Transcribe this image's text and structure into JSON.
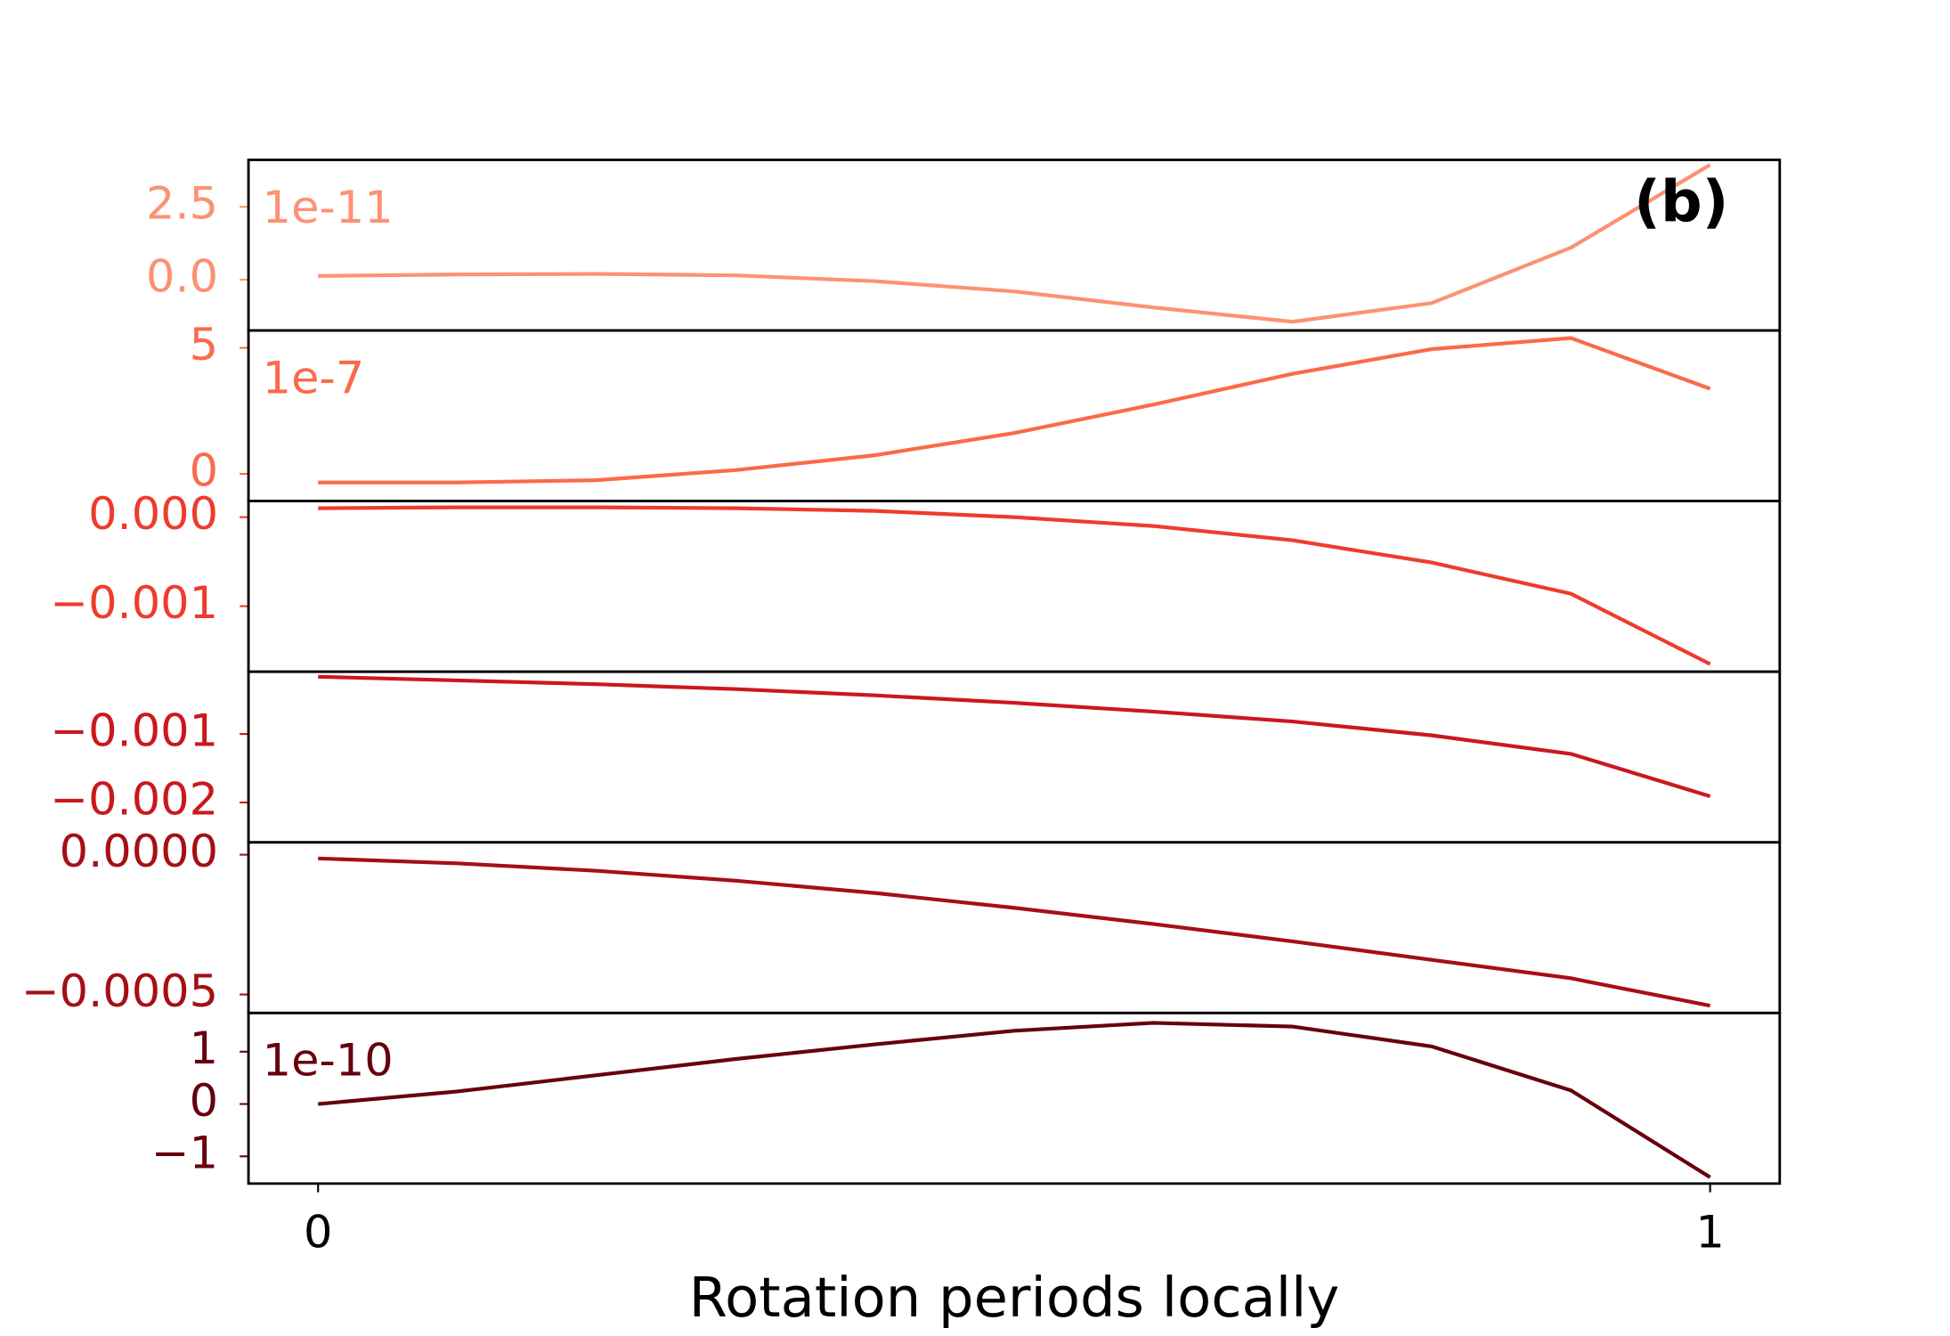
{
  "chart_data": [
    {
      "type": "line",
      "color": "#fc9272",
      "offset_text": "1e-11",
      "annotation": "(b)",
      "x": [
        0,
        0.1,
        0.2,
        0.3,
        0.4,
        0.5,
        0.6,
        0.7,
        0.8,
        0.9,
        1
      ],
      "values": [
        0.13,
        0.18,
        0.2,
        0.15,
        -0.05,
        -0.4,
        -0.95,
        -1.44,
        -0.8,
        1.1,
        3.94
      ],
      "xlim": [
        -0.05,
        1.05
      ],
      "ylim": [
        -1.74,
        4.11
      ],
      "yticks": [
        {
          "value": 0,
          "label": "0.0"
        },
        2.5
      ]
    },
    {
      "type": "line",
      "color": "#fb6a4a",
      "offset_text": "1e-7",
      "x": [
        0,
        0.1,
        0.2,
        0.3,
        0.4,
        0.5,
        0.6,
        0.7,
        0.8,
        0.9,
        1
      ],
      "values": [
        -0.34,
        -0.34,
        -0.25,
        0.15,
        0.74,
        1.62,
        2.75,
        3.97,
        4.95,
        5.39,
        3.38
      ],
      "xlim": [
        -0.05,
        1.05
      ],
      "ylim": [
        -1.08,
        5.69
      ],
      "yticks": [
        0,
        5
      ]
    },
    {
      "type": "line",
      "color": "#ef3b2c",
      "x": [
        0,
        0.1,
        0.2,
        0.3,
        0.4,
        0.5,
        0.6,
        0.7,
        0.8,
        0.9,
        1
      ],
      "values": [
        0.0001,
        0.00011,
        0.00011,
        0.0001,
        7e-05,
        0,
        -0.0001,
        -0.00026,
        -0.00051,
        -0.00086,
        -0.00165
      ],
      "xlim": [
        -0.05,
        1.05
      ],
      "ylim": [
        -0.001736,
        0.00018
      ],
      "yticks": [
        {
          "value": -0.001,
          "label": "−0.001"
        },
        {
          "value": 0,
          "label": "0.000"
        }
      ]
    },
    {
      "type": "line",
      "color": "#cb181d",
      "x": [
        0,
        0.1,
        0.2,
        0.3,
        0.4,
        0.5,
        0.6,
        0.7,
        0.8,
        0.9,
        1
      ],
      "values": [
        -0.000164,
        -0.000218,
        -0.000273,
        -0.000345,
        -0.000436,
        -0.000545,
        -0.000673,
        -0.000818,
        -0.00102,
        -0.00129,
        -0.00191
      ],
      "xlim": [
        -0.05,
        1.05
      ],
      "ylim": [
        -0.002582,
        -9.09e-05
      ],
      "yticks": [
        {
          "value": -0.002,
          "label": "−0.002"
        },
        {
          "value": -0.001,
          "label": "−0.001"
        }
      ]
    },
    {
      "type": "line",
      "color": "#a50f15",
      "x": [
        0,
        0.1,
        0.2,
        0.3,
        0.4,
        0.5,
        0.6,
        0.7,
        0.8,
        0.9,
        1
      ],
      "values": [
        -1.33e-05,
        -3.1e-05,
        -5.75e-05,
        -9.3e-05,
        -0.000137,
        -0.00019,
        -0.000248,
        -0.00031,
        -0.000376,
        -0.000442,
        -0.00054
      ],
      "xlim": [
        -0.05,
        1.05
      ],
      "ylim": [
        -0.000566,
        4.42e-05
      ],
      "yticks": [
        {
          "value": -0.0005,
          "label": "−0.0005"
        },
        {
          "value": 0,
          "label": "0.0000"
        }
      ]
    },
    {
      "type": "line",
      "color": "#67000d",
      "offset_text": "1e-10",
      "x": [
        0,
        0.1,
        0.2,
        0.3,
        0.4,
        0.5,
        0.6,
        0.7,
        0.8,
        0.9,
        1
      ],
      "values": [
        0,
        0.24,
        0.55,
        0.86,
        1.14,
        1.4,
        1.55,
        1.48,
        1.1,
        0.26,
        -1.4
      ],
      "xlim": [
        -0.05,
        1.05
      ],
      "ylim": [
        -1.52,
        1.74
      ],
      "yticks": [
        {
          "value": -1,
          "label": "−1"
        },
        0,
        1
      ],
      "xticks": [
        0,
        1
      ],
      "x_label": "Rotation periods locally"
    }
  ]
}
